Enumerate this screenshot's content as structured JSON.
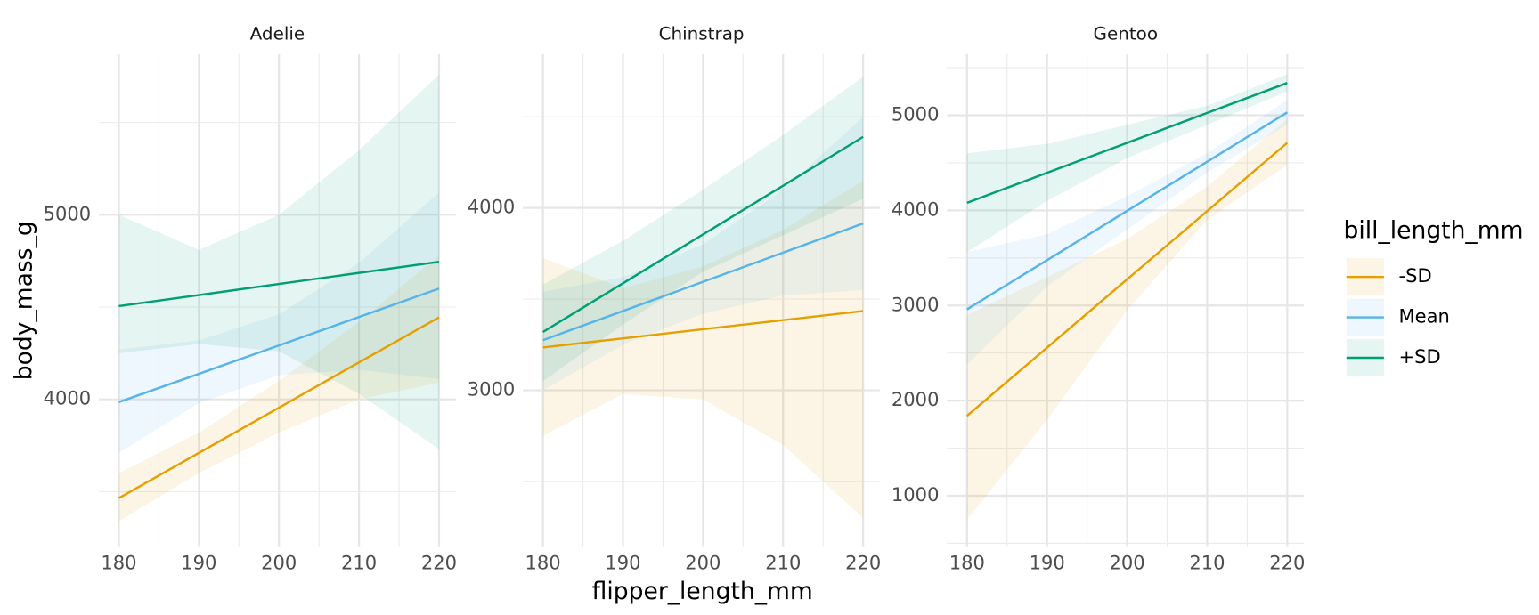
{
  "chart_data": [
    {
      "type": "line",
      "title": "Adelie",
      "y_label": "body_mass_g",
      "x": [
        180,
        190,
        200,
        210,
        220
      ],
      "xlim": [
        177.5,
        222.1
      ],
      "ylim": [
        3200,
        5870
      ],
      "xticks": [
        180,
        190,
        200,
        210,
        220
      ],
      "yticks": [
        4000,
        5000
      ],
      "grid": true,
      "series": [
        {
          "color": "#E69F00",
          "values": [
            3465,
            3710,
            3955,
            4200,
            4444
          ],
          "lower": [
            3340,
            3600,
            3820,
            4000,
            4090
          ],
          "upper": [
            3600,
            3820,
            4100,
            4420,
            4780
          ]
        },
        {
          "color": "#56B4E9",
          "values": [
            3985,
            4138,
            4292,
            4446,
            4600
          ],
          "lower": [
            3710,
            3980,
            4130,
            4160,
            4110
          ],
          "upper": [
            4270,
            4320,
            4460,
            4740,
            5120
          ]
        },
        {
          "color": "#009E73",
          "values": [
            4505,
            4565,
            4625,
            4685,
            4745
          ],
          "lower": [
            4250,
            4300,
            4260,
            4030,
            3730
          ],
          "upper": [
            5000,
            4810,
            5000,
            5350,
            5760
          ]
        }
      ]
    },
    {
      "type": "line",
      "title": "Chinstrap",
      "x_label": "flipper_length_mm",
      "x": [
        180,
        190,
        200,
        210,
        220
      ],
      "xlim": [
        177.5,
        222.1
      ],
      "ylim": [
        2141,
        4843
      ],
      "xticks": [
        180,
        190,
        200,
        210,
        220
      ],
      "yticks": [
        3000,
        4000
      ],
      "grid": true,
      "series": [
        {
          "color": "#E69F00",
          "values": [
            3235,
            3285,
            3335,
            3385,
            3435
          ],
          "lower": [
            2750,
            2980,
            2950,
            2700,
            2300
          ],
          "upper": [
            3725,
            3560,
            3680,
            3880,
            4150
          ]
        },
        {
          "color": "#56B4E9",
          "values": [
            3275,
            3435,
            3595,
            3755,
            3915
          ],
          "lower": [
            3000,
            3250,
            3420,
            3520,
            3550
          ],
          "upper": [
            3540,
            3620,
            3800,
            4100,
            4500
          ]
        },
        {
          "color": "#009E73",
          "values": [
            3320,
            3587,
            3855,
            4122,
            4390
          ],
          "lower": [
            3050,
            3360,
            3650,
            3850,
            4050
          ],
          "upper": [
            3580,
            3820,
            4100,
            4400,
            4720
          ]
        }
      ]
    },
    {
      "type": "line",
      "title": "Gentoo",
      "legend_title": "bill_length_mm",
      "legend": "right",
      "x": [
        180,
        190,
        200,
        210,
        220
      ],
      "xlim": [
        177.5,
        222.1
      ],
      "ylim": [
        461,
        5642
      ],
      "xticks": [
        180,
        190,
        200,
        210,
        220
      ],
      "yticks": [
        1000,
        2000,
        3000,
        4000,
        5000
      ],
      "grid": true,
      "series": [
        {
          "name": "-SD",
          "color": "#E69F00",
          "values": [
            1840,
            2557,
            3275,
            3992,
            4710
          ],
          "lower": [
            750,
            1800,
            2950,
            3900,
            4480
          ],
          "upper": [
            2900,
            3300,
            3700,
            4250,
            4960
          ]
        },
        {
          "name": "Mean",
          "color": "#56B4E9",
          "values": [
            2960,
            3477,
            3995,
            4512,
            5030
          ],
          "lower": [
            2380,
            3200,
            3800,
            4400,
            4900
          ],
          "upper": [
            3560,
            3750,
            4150,
            4600,
            5160
          ]
        },
        {
          "name": "+SD",
          "color": "#009E73",
          "values": [
            4080,
            4395,
            4710,
            5025,
            5340
          ],
          "lower": [
            3560,
            4100,
            4550,
            4900,
            5250
          ],
          "upper": [
            4600,
            4700,
            4900,
            5100,
            5430
          ]
        }
      ]
    }
  ]
}
